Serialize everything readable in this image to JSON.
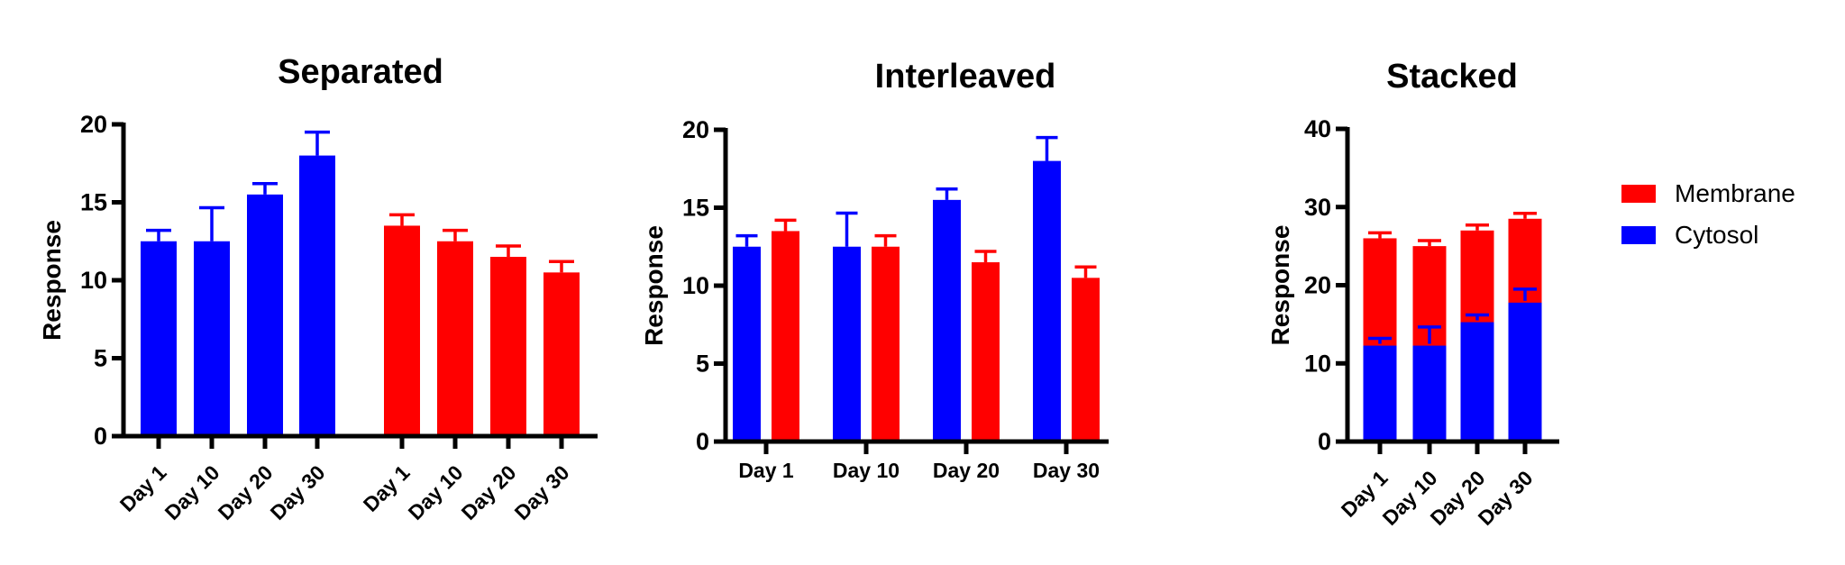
{
  "figure": {
    "background_color": "#ffffff",
    "axis_color": "#000000",
    "text_color": "#000000"
  },
  "legend": {
    "position": "right",
    "items": [
      {
        "label": "Membrane",
        "color": "#ff0000"
      },
      {
        "label": "Cytosol",
        "color": "#0000ff"
      }
    ]
  },
  "chart_data": [
    {
      "type": "bar",
      "variant": "separated",
      "title": "Separated",
      "xlabel": "",
      "ylabel": "Response",
      "categories": [
        "Day 1",
        "Day 10",
        "Day 20",
        "Day 30"
      ],
      "series": [
        {
          "name": "Cytosol",
          "color": "#0000ff",
          "values": [
            12.5,
            12.5,
            15.5,
            18.0
          ],
          "errors": [
            0.7,
            2.15,
            0.7,
            1.5
          ]
        },
        {
          "name": "Membrane",
          "color": "#ff0000",
          "values": [
            13.5,
            12.5,
            11.5,
            10.5
          ],
          "errors": [
            0.7,
            0.7,
            0.7,
            0.7
          ]
        }
      ],
      "ylim": [
        0,
        20
      ],
      "yticks": [
        0,
        5,
        10,
        15,
        20
      ],
      "xtick_rotation": 45,
      "grid": false,
      "error_bars": "upper SEM with cap"
    },
    {
      "type": "bar",
      "variant": "interleaved",
      "title": "Interleaved",
      "xlabel": "",
      "ylabel": "Response",
      "categories": [
        "Day 1",
        "Day 10",
        "Day 20",
        "Day 30"
      ],
      "series": [
        {
          "name": "Cytosol",
          "color": "#0000ff",
          "values": [
            12.5,
            12.5,
            15.5,
            18.0
          ],
          "errors": [
            0.7,
            2.15,
            0.7,
            1.5
          ]
        },
        {
          "name": "Membrane",
          "color": "#ff0000",
          "values": [
            13.5,
            12.5,
            11.5,
            10.5
          ],
          "errors": [
            0.7,
            0.7,
            0.7,
            0.7
          ]
        }
      ],
      "ylim": [
        0,
        20
      ],
      "yticks": [
        0,
        5,
        10,
        15,
        20
      ],
      "xtick_rotation": 0,
      "grid": false,
      "error_bars": "upper SEM with cap"
    },
    {
      "type": "bar",
      "variant": "stacked",
      "title": "Stacked",
      "xlabel": "",
      "ylabel": "Response",
      "categories": [
        "Day 1",
        "Day 10",
        "Day 20",
        "Day 30"
      ],
      "series": [
        {
          "name": "Cytosol",
          "color": "#0000ff",
          "values": [
            12.5,
            12.5,
            15.5,
            18.0
          ],
          "errors": [
            0.7,
            2.15,
            0.7,
            1.5
          ]
        },
        {
          "name": "Membrane",
          "color": "#ff0000",
          "values": [
            13.5,
            12.5,
            11.5,
            10.5
          ],
          "errors": [
            0.7,
            0.7,
            0.7,
            0.7
          ]
        }
      ],
      "totals": [
        26.0,
        25.0,
        27.0,
        28.5
      ],
      "ylim": [
        0,
        40
      ],
      "yticks": [
        0,
        10,
        20,
        30,
        40
      ],
      "xtick_rotation": 45,
      "grid": false,
      "error_bars": "upper SEM with cap; inner SEM on bottom segment"
    }
  ]
}
